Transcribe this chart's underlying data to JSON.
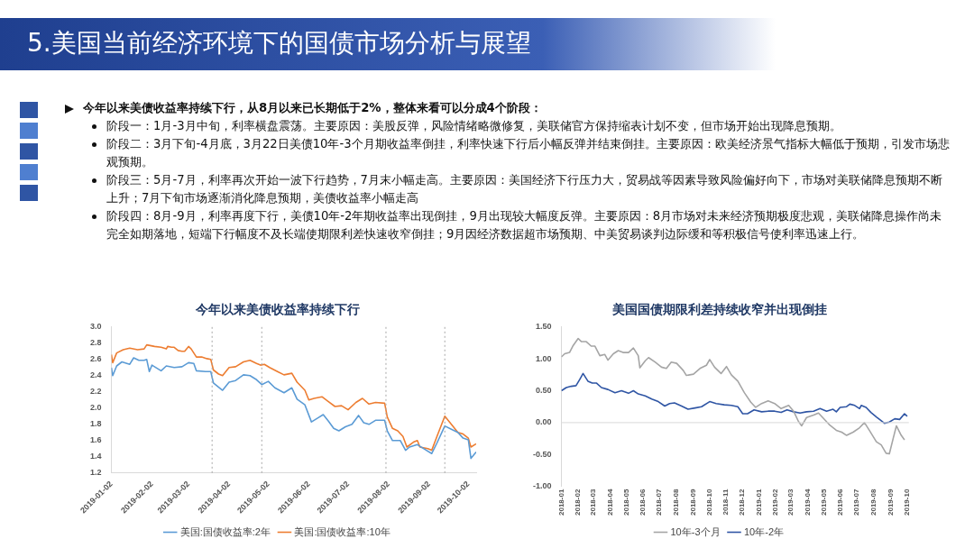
{
  "chart_data": [
    {
      "type": "other",
      "title": "5.美国当前经济环境下的国债市场分析与展望",
      "annotations": [
        "今年以来美债收益率持续下行，从8月以来已长期低于2%，整体来看可以分成4个阶段：",
        "阶段一：1月-3月中旬，利率横盘震荡。主要原因：美股反弹，风险情绪略微修复，美联储官方保持缩表计划不变，但市场开始出现降息预期。",
        "阶段二：3月下旬-4月底，3月22日美债10年-3个月期收益率倒挂，利率快速下行后小幅反弹并结束倒挂。主要原因：欧美经济景气指标大幅低于预期，引发市场悲观预期。",
        "阶段三：5月-7月，利率再次开始一波下行趋势，7月末小幅走高。主要原因：美国经济下行压力大，贸易战等因素导致风险偏好向下，市场对美联储降息预期不断上升；7月下旬市场逐渐消化降息预期，美债收益率小幅走高",
        "阶段四：8月-9月，利率再度下行，美债10年-2年期收益率出现倒挂，9月出现较大幅度反弹。主要原因：8月市场对未来经济预期极度悲观，美联储降息操作尚未完全如期落地，短端下行幅度不及长端使期限利差快速收窄倒挂；9月因经济数据超市场预期、中美贸易谈判边际缓和等积极信号使利率迅速上行。"
      ]
    },
    {
      "type": "line",
      "title": "今年以来美债收益率持续下行",
      "legend": "bottom",
      "grid": false,
      "marker": "none",
      "line_style": "solid",
      "xlim": [
        "2019-01-02",
        "2019-10-08"
      ],
      "xticks": [
        "2019-01-02",
        "2019-02-02",
        "2019-03-02",
        "2019-04-02",
        "2019-05-02",
        "2019-06-02",
        "2019-07-02",
        "2019-08-02",
        "2019-09-02",
        "2019-10-02"
      ],
      "ylim": [
        1.2,
        3.0
      ],
      "yticks": [
        {
          "value": 1.2,
          "label": "1.2"
        },
        {
          "value": 1.4,
          "label": "1.4"
        },
        {
          "value": 1.6,
          "label": "1.6"
        },
        {
          "value": 1.8,
          "label": "1.8"
        },
        {
          "value": 2.0,
          "label": "2.0"
        },
        {
          "value": 2.2,
          "label": "2.2"
        },
        {
          "value": 2.4,
          "label": "2.4"
        },
        {
          "value": 2.6,
          "label": "2.6"
        },
        {
          "value": 2.8,
          "label": "2.8"
        },
        {
          "value": 3.0,
          "label": "3.0"
        }
      ],
      "ref_lines": [
        {
          "axis": "x",
          "value": "2019-03-20",
          "color": "#a6a6a6",
          "line_style": "dotted"
        },
        {
          "axis": "x",
          "value": "2019-04-27",
          "color": "#a6a6a6",
          "line_style": "dotted"
        },
        {
          "axis": "x",
          "value": "2019-07-31",
          "color": "#a6a6a6",
          "line_style": "dotted"
        },
        {
          "axis": "x",
          "value": "2019-09-14",
          "color": "#a6a6a6",
          "line_style": "dotted"
        }
      ],
      "series": [
        {
          "name": "美国:国债收益率:2年",
          "color": "#5b9bd5",
          "x": [
            "2019-01-02",
            "2019-01-03",
            "2019-01-06",
            "2019-01-10",
            "2019-01-16",
            "2019-01-19",
            "2019-01-23",
            "2019-01-27",
            "2019-01-29",
            "2019-01-31",
            "2019-02-02",
            "2019-02-09",
            "2019-02-13",
            "2019-02-19",
            "2019-02-25",
            "2019-03-02",
            "2019-03-06",
            "2019-03-08",
            "2019-03-15",
            "2019-03-19",
            "2019-03-21",
            "2019-03-28",
            "2019-04-02",
            "2019-04-07",
            "2019-04-13",
            "2019-04-18",
            "2019-04-23",
            "2019-04-27",
            "2019-05-02",
            "2019-05-07",
            "2019-05-14",
            "2019-05-20",
            "2019-05-24",
            "2019-05-30",
            "2019-06-04",
            "2019-06-09",
            "2019-06-13",
            "2019-06-17",
            "2019-06-21",
            "2019-06-25",
            "2019-06-30",
            "2019-07-05",
            "2019-07-10",
            "2019-07-14",
            "2019-07-18",
            "2019-07-23",
            "2019-07-30",
            "2019-08-01",
            "2019-08-05",
            "2019-08-11",
            "2019-08-15",
            "2019-08-18",
            "2019-08-24",
            "2019-08-29",
            "2019-09-04",
            "2019-09-08",
            "2019-09-14",
            "2019-09-19",
            "2019-09-24",
            "2019-09-28",
            "2019-10-02",
            "2019-10-04",
            "2019-10-08"
          ],
          "values": [
            2.5,
            2.4,
            2.52,
            2.57,
            2.54,
            2.62,
            2.59,
            2.59,
            2.6,
            2.45,
            2.53,
            2.46,
            2.52,
            2.5,
            2.51,
            2.56,
            2.55,
            2.46,
            2.45,
            2.45,
            2.31,
            2.22,
            2.32,
            2.34,
            2.41,
            2.4,
            2.35,
            2.29,
            2.33,
            2.25,
            2.19,
            2.25,
            2.11,
            2.04,
            1.83,
            1.88,
            1.92,
            1.84,
            1.75,
            1.72,
            1.77,
            1.8,
            1.91,
            1.82,
            1.8,
            1.85,
            1.85,
            1.72,
            1.6,
            1.6,
            1.48,
            1.52,
            1.55,
            1.5,
            1.44,
            1.57,
            1.78,
            1.74,
            1.7,
            1.63,
            1.61,
            1.38,
            1.46
          ]
        },
        {
          "name": "美国:国债收益率:10年",
          "color": "#ed7d31",
          "x": [
            "2019-01-02",
            "2019-01-03",
            "2019-01-06",
            "2019-01-11",
            "2019-01-16",
            "2019-01-22",
            "2019-01-27",
            "2019-01-29",
            "2019-02-04",
            "2019-02-09",
            "2019-02-13",
            "2019-02-14",
            "2019-02-17",
            "2019-02-19",
            "2019-02-22",
            "2019-02-25",
            "2019-02-27",
            "2019-03-02",
            "2019-03-04",
            "2019-03-08",
            "2019-03-12",
            "2019-03-16",
            "2019-03-19",
            "2019-03-21",
            "2019-03-25",
            "2019-03-28",
            "2019-04-02",
            "2019-04-07",
            "2019-04-13",
            "2019-04-18",
            "2019-04-23",
            "2019-04-26",
            "2019-04-29",
            "2019-05-03",
            "2019-05-09",
            "2019-05-14",
            "2019-05-20",
            "2019-05-24",
            "2019-05-30",
            "2019-06-02",
            "2019-06-06",
            "2019-06-12",
            "2019-06-17",
            "2019-06-22",
            "2019-06-27",
            "2019-07-02",
            "2019-07-08",
            "2019-07-13",
            "2019-07-18",
            "2019-07-23",
            "2019-07-30",
            "2019-08-01",
            "2019-08-05",
            "2019-08-09",
            "2019-08-13",
            "2019-08-16",
            "2019-08-21",
            "2019-08-24",
            "2019-08-26",
            "2019-09-01",
            "2019-09-04",
            "2019-09-08",
            "2019-09-14",
            "2019-09-19",
            "2019-09-24",
            "2019-09-28",
            "2019-10-02",
            "2019-10-04",
            "2019-10-08"
          ],
          "values": [
            2.66,
            2.56,
            2.68,
            2.72,
            2.74,
            2.72,
            2.73,
            2.78,
            2.76,
            2.75,
            2.73,
            2.76,
            2.75,
            2.75,
            2.71,
            2.7,
            2.7,
            2.76,
            2.73,
            2.63,
            2.63,
            2.61,
            2.6,
            2.47,
            2.42,
            2.4,
            2.5,
            2.51,
            2.57,
            2.59,
            2.55,
            2.53,
            2.54,
            2.5,
            2.45,
            2.41,
            2.43,
            2.32,
            2.22,
            2.1,
            2.12,
            2.14,
            2.08,
            2.02,
            2.03,
            1.98,
            2.07,
            2.12,
            2.05,
            2.07,
            2.06,
            1.89,
            1.75,
            1.72,
            1.65,
            1.52,
            1.58,
            1.6,
            1.52,
            1.5,
            1.48,
            1.65,
            1.9,
            1.8,
            1.7,
            1.68,
            1.63,
            1.52,
            1.56
          ]
        }
      ]
    },
    {
      "type": "line",
      "title": "美国国债期限利差持续收窄并出现倒挂",
      "legend": "bottom",
      "grid": false,
      "marker": "none",
      "line_style": "solid",
      "xlim": [
        "2018-01-01",
        "2019-10-05"
      ],
      "xticks": [
        "2018-01",
        "2018-02",
        "2018-03",
        "2018-04",
        "2018-05",
        "2018-06",
        "2018-07",
        "2018-08",
        "2018-09",
        "2018-10",
        "2018-11",
        "2018-12",
        "2019-01",
        "2019-02",
        "2019-03",
        "2019-04",
        "2019-05",
        "2019-06",
        "2019-07",
        "2019-08",
        "2019-09",
        "2019-10"
      ],
      "ylim": [
        -1.0,
        1.5
      ],
      "ref_lines": [
        {
          "axis": "y",
          "value": 0,
          "color": "#d9d9d9",
          "line_style": "solid"
        }
      ],
      "yticks": [
        {
          "value": -1.0,
          "label": "-1.00"
        },
        {
          "value": -0.5,
          "label": "-0.50"
        },
        {
          "value": 0,
          "label": "0.00"
        },
        {
          "value": 0.5,
          "label": "0.50"
        },
        {
          "value": 1.0,
          "label": "1.00"
        },
        {
          "value": 1.5,
          "label": "1.50"
        }
      ],
      "series": [
        {
          "name": "10年-3个月",
          "color": "#a5a5a5",
          "x": [
            "2018-01-01",
            "2018-01-07",
            "2018-01-16",
            "2018-01-22",
            "2018-02-01",
            "2018-02-07",
            "2018-02-16",
            "2018-02-25",
            "2018-03-04",
            "2018-03-13",
            "2018-03-22",
            "2018-03-28",
            "2018-04-07",
            "2018-04-16",
            "2018-04-25",
            "2018-05-05",
            "2018-05-14",
            "2018-05-23",
            "2018-05-26",
            "2018-06-05",
            "2018-06-11",
            "2018-06-23",
            "2018-07-05",
            "2018-07-14",
            "2018-07-23",
            "2018-08-02",
            "2018-08-14",
            "2018-08-20",
            "2018-09-02",
            "2018-09-14",
            "2018-09-26",
            "2018-10-02",
            "2018-10-11",
            "2018-10-23",
            "2018-11-02",
            "2018-11-11",
            "2018-11-23",
            "2018-12-05",
            "2018-12-17",
            "2018-12-26",
            "2019-01-06",
            "2019-01-18",
            "2019-01-30",
            "2019-02-11",
            "2019-02-25",
            "2019-03-06",
            "2019-03-15",
            "2019-03-21",
            "2019-03-30",
            "2019-04-12",
            "2019-04-21",
            "2019-04-30",
            "2019-05-12",
            "2019-05-24",
            "2019-06-03",
            "2019-06-12",
            "2019-06-24",
            "2019-07-06",
            "2019-07-15",
            "2019-07-24",
            "2019-08-06",
            "2019-08-15",
            "2019-08-24",
            "2019-08-30",
            "2019-09-06",
            "2019-09-12",
            "2019-09-21",
            "2019-09-27"
          ],
          "values": [
            1.03,
            1.08,
            1.1,
            1.2,
            1.32,
            1.27,
            1.27,
            1.2,
            1.2,
            1.05,
            1.07,
            0.98,
            1.08,
            1.13,
            1.1,
            1.1,
            1.17,
            1.05,
            0.86,
            0.97,
            1.02,
            0.95,
            0.87,
            0.85,
            0.95,
            0.93,
            0.82,
            0.74,
            0.76,
            0.85,
            0.9,
            0.99,
            0.87,
            0.77,
            0.88,
            0.75,
            0.65,
            0.47,
            0.32,
            0.24,
            0.3,
            0.34,
            0.3,
            0.22,
            0.27,
            0.18,
            0.02,
            -0.05,
            0.08,
            0.12,
            0.15,
            0.07,
            -0.04,
            -0.12,
            -0.15,
            -0.2,
            -0.15,
            -0.08,
            0.0,
            -0.12,
            -0.3,
            -0.35,
            -0.48,
            -0.49,
            -0.25,
            -0.05,
            -0.2,
            -0.27
          ]
        },
        {
          "name": "10年-2年",
          "color": "#2f55a4",
          "x": [
            "2018-01-01",
            "2018-01-10",
            "2018-01-19",
            "2018-01-28",
            "2018-02-04",
            "2018-02-10",
            "2018-02-19",
            "2018-02-27",
            "2018-03-07",
            "2018-03-16",
            "2018-03-28",
            "2018-04-10",
            "2018-04-22",
            "2018-05-05",
            "2018-05-14",
            "2018-05-23",
            "2018-06-05",
            "2018-06-17",
            "2018-06-29",
            "2018-07-11",
            "2018-07-20",
            "2018-07-29",
            "2018-08-11",
            "2018-08-23",
            "2018-09-05",
            "2018-09-17",
            "2018-10-02",
            "2018-10-14",
            "2018-10-29",
            "2018-11-11",
            "2018-11-23",
            "2018-12-02",
            "2018-12-11",
            "2018-12-23",
            "2019-01-06",
            "2019-01-18",
            "2019-01-30",
            "2019-02-11",
            "2019-02-22",
            "2019-03-06",
            "2019-03-18",
            "2019-03-30",
            "2019-04-12",
            "2019-04-24",
            "2019-05-06",
            "2019-05-18",
            "2019-05-24",
            "2019-05-31",
            "2019-06-12",
            "2019-06-18",
            "2019-06-27",
            "2019-07-06",
            "2019-07-09",
            "2019-07-18",
            "2019-07-27",
            "2019-08-06",
            "2019-08-12",
            "2019-08-21",
            "2019-08-30",
            "2019-09-09",
            "2019-09-18",
            "2019-09-27",
            "2019-10-02"
          ],
          "values": [
            0.5,
            0.55,
            0.57,
            0.58,
            0.68,
            0.77,
            0.65,
            0.62,
            0.62,
            0.55,
            0.52,
            0.47,
            0.5,
            0.46,
            0.5,
            0.45,
            0.42,
            0.37,
            0.33,
            0.26,
            0.3,
            0.31,
            0.26,
            0.21,
            0.23,
            0.25,
            0.33,
            0.3,
            0.28,
            0.27,
            0.25,
            0.14,
            0.14,
            0.2,
            0.17,
            0.18,
            0.18,
            0.16,
            0.2,
            0.17,
            0.15,
            0.17,
            0.18,
            0.22,
            0.18,
            0.21,
            0.17,
            0.24,
            0.25,
            0.29,
            0.27,
            0.22,
            0.27,
            0.24,
            0.16,
            0.09,
            0.05,
            -0.01,
            0.01,
            0.06,
            0.05,
            0.14,
            0.1
          ]
        }
      ]
    }
  ]
}
